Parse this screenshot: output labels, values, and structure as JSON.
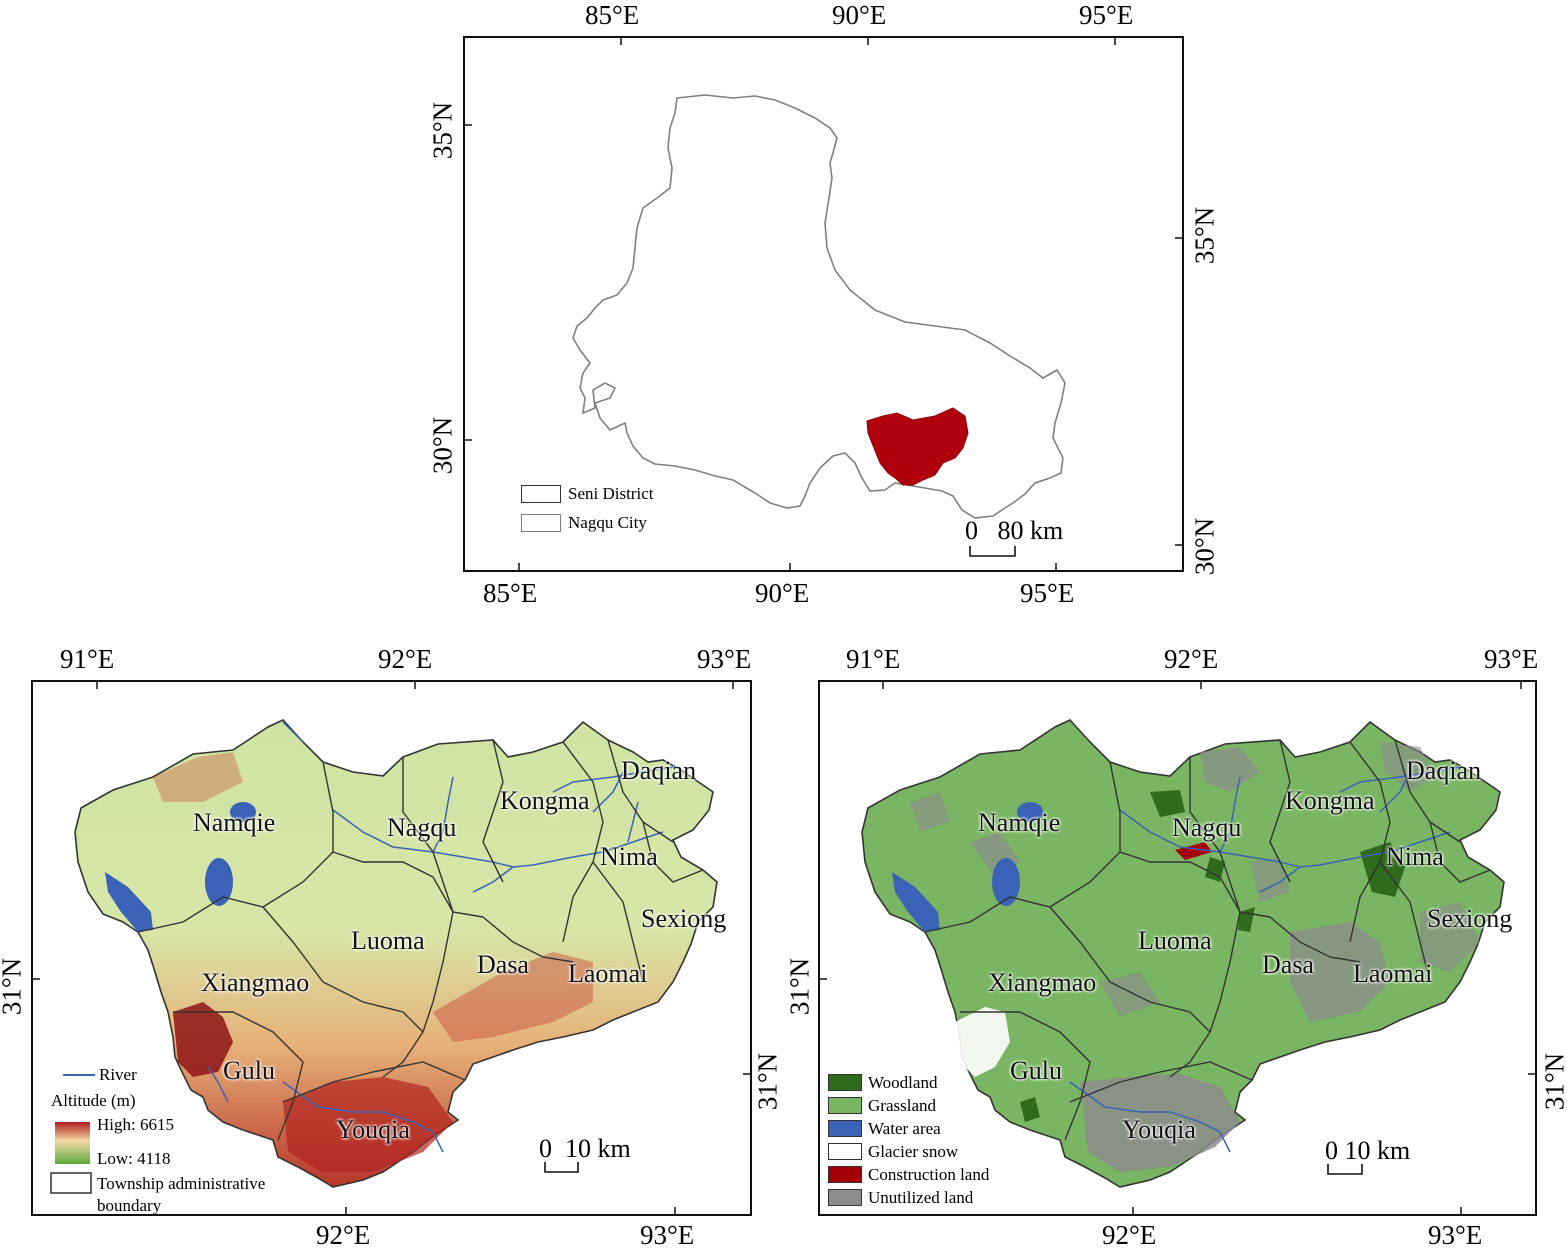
{
  "top_map": {
    "top_ticks": [
      "85°E",
      "90°E",
      "95°E"
    ],
    "bottom_ticks": [
      "85°E",
      "90°E",
      "95°E"
    ],
    "left_ticks": [
      "35°N",
      "30°N"
    ],
    "right_ticks": [
      "35°N",
      "30°N"
    ],
    "legend": [
      {
        "label": "Seni District",
        "color": "#b0000e"
      },
      {
        "label": "Nagqu City",
        "color": "#ffffff"
      }
    ],
    "scale_text": "0   80 km"
  },
  "altitude_map": {
    "top_ticks": [
      "91°E",
      "92°E",
      "93°E"
    ],
    "bottom_ticks": [
      "92°E",
      "93°E"
    ],
    "left_ticks": [
      "31°N"
    ],
    "right_ticks": [
      "31°N"
    ],
    "townships": [
      "Namqie",
      "Nagqu",
      "Kongma",
      "Daqian",
      "Nima",
      "Sexiong",
      "Luoma",
      "Dasa",
      "Laomai",
      "Xiangmao",
      "Gulu",
      "Youqia"
    ],
    "legend": {
      "river_label": "River",
      "altitude_title": "Altitude (m)",
      "high_label": "High: 6615",
      "low_label": "Low: 4118",
      "boundary_label_1": "Township administrative",
      "boundary_label_2": "boundary",
      "river_color": "#3a63b8"
    },
    "scale_text": "0  10 km"
  },
  "landuse_map": {
    "top_ticks": [
      "91°E",
      "92°E",
      "93°E"
    ],
    "bottom_ticks": [
      "92°E",
      "93°E"
    ],
    "left_ticks": [
      "31°N"
    ],
    "right_ticks": [
      "31°N"
    ],
    "townships": [
      "Namqie",
      "Nagqu",
      "Kongma",
      "Daqian",
      "Nima",
      "Sexiong",
      "Luoma",
      "Dasa",
      "Laomai",
      "Xiangmao",
      "Gulu",
      "Youqia"
    ],
    "legend": [
      {
        "label": "Woodland",
        "color": "#2f6b1d"
      },
      {
        "label": "Grassland",
        "color": "#79b562"
      },
      {
        "label": "Water area",
        "color": "#3a63b8"
      },
      {
        "label": "Glacier snow",
        "color": "#ffffff"
      },
      {
        "label": "Construction land",
        "color": "#a30009"
      },
      {
        "label": "Unutilized land",
        "color": "#8c8c8c"
      }
    ],
    "scale_text": "0 10 km"
  }
}
